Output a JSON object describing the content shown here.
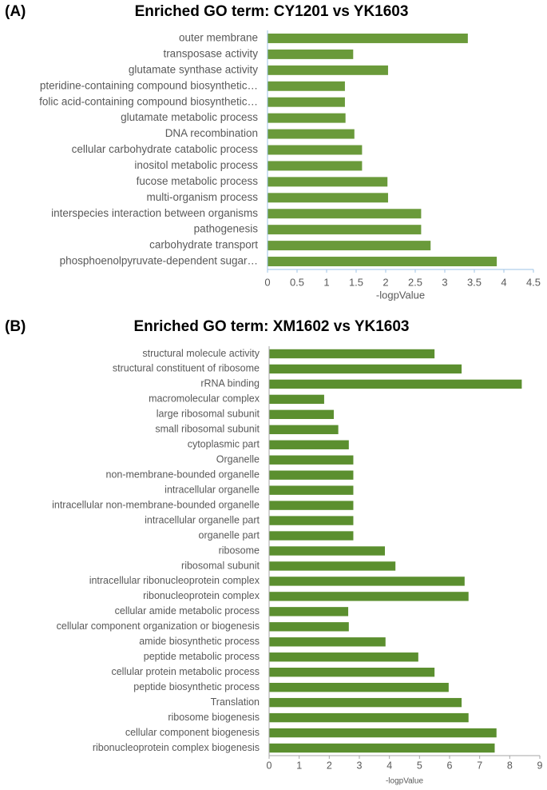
{
  "chart_data": [
    {
      "type": "bar",
      "orientation": "horizontal",
      "panel": "(A)",
      "title": "Enriched GO term: CY1201 vs YK1603",
      "x_label": "-logpValue",
      "color": "#6a9a3a",
      "axis_color": "#9dc3e6",
      "categories": [
        "outer membrane",
        "transposase activity",
        "glutamate synthase activity",
        "pteridine-containing compound biosynthetic…",
        "folic acid-containing compound biosynthetic…",
        "glutamate metabolic process",
        "DNA recombination",
        "cellular carbohydrate catabolic process",
        "inositol metabolic process",
        "fucose metabolic process",
        "multi-organism process",
        "interspecies interaction between organisms",
        "pathogenesis",
        "carbohydrate transport",
        "phosphoenolpyruvate-dependent sugar…"
      ],
      "values": [
        3.39,
        1.45,
        2.04,
        1.31,
        1.31,
        1.32,
        1.47,
        1.6,
        1.6,
        2.03,
        2.04,
        2.6,
        2.6,
        2.76,
        3.88
      ],
      "xlim": [
        0,
        4.5
      ],
      "xticks": [
        0,
        0.5,
        1,
        1.5,
        2,
        2.5,
        3,
        3.5,
        4,
        4.5
      ]
    },
    {
      "type": "bar",
      "orientation": "horizontal",
      "panel": "(B)",
      "title": "Enriched GO term: XM1602 vs YK1603",
      "x_label": "-logpValue",
      "color": "#5b8f2f",
      "axis_color": "#a6a6a6",
      "categories": [
        "structural molecule activity",
        "structural constituent of ribosome",
        "rRNA binding",
        "macromolecular complex",
        "large ribosomal subunit",
        "small ribosomal subunit",
        "cytoplasmic part",
        "Organelle",
        "non-membrane-bounded organelle",
        "intracellular organelle",
        "intracellular non-membrane-bounded organelle",
        "intracellular organelle part",
        "organelle part",
        "ribosome",
        "ribosomal subunit",
        "intracellular ribonucleoprotein complex",
        "ribonucleoprotein complex",
        "cellular amide metabolic process",
        "cellular component organization or biogenesis",
        "amide biosynthetic process",
        "peptide metabolic process",
        "cellular protein metabolic process",
        "peptide biosynthetic process",
        "Translation",
        "ribosome biogenesis",
        "cellular component biogenesis",
        "ribonucleoprotein complex biogenesis"
      ],
      "values": [
        5.5,
        6.4,
        8.4,
        1.83,
        2.15,
        2.3,
        2.65,
        2.8,
        2.8,
        2.8,
        2.8,
        2.8,
        2.8,
        3.85,
        4.2,
        6.5,
        6.63,
        2.63,
        2.65,
        3.87,
        4.96,
        5.5,
        5.97,
        6.4,
        6.63,
        7.56,
        7.5
      ],
      "xlim": [
        0,
        9
      ],
      "xticks": [
        0,
        1,
        2,
        3,
        4,
        5,
        6,
        7,
        8,
        9
      ]
    }
  ]
}
